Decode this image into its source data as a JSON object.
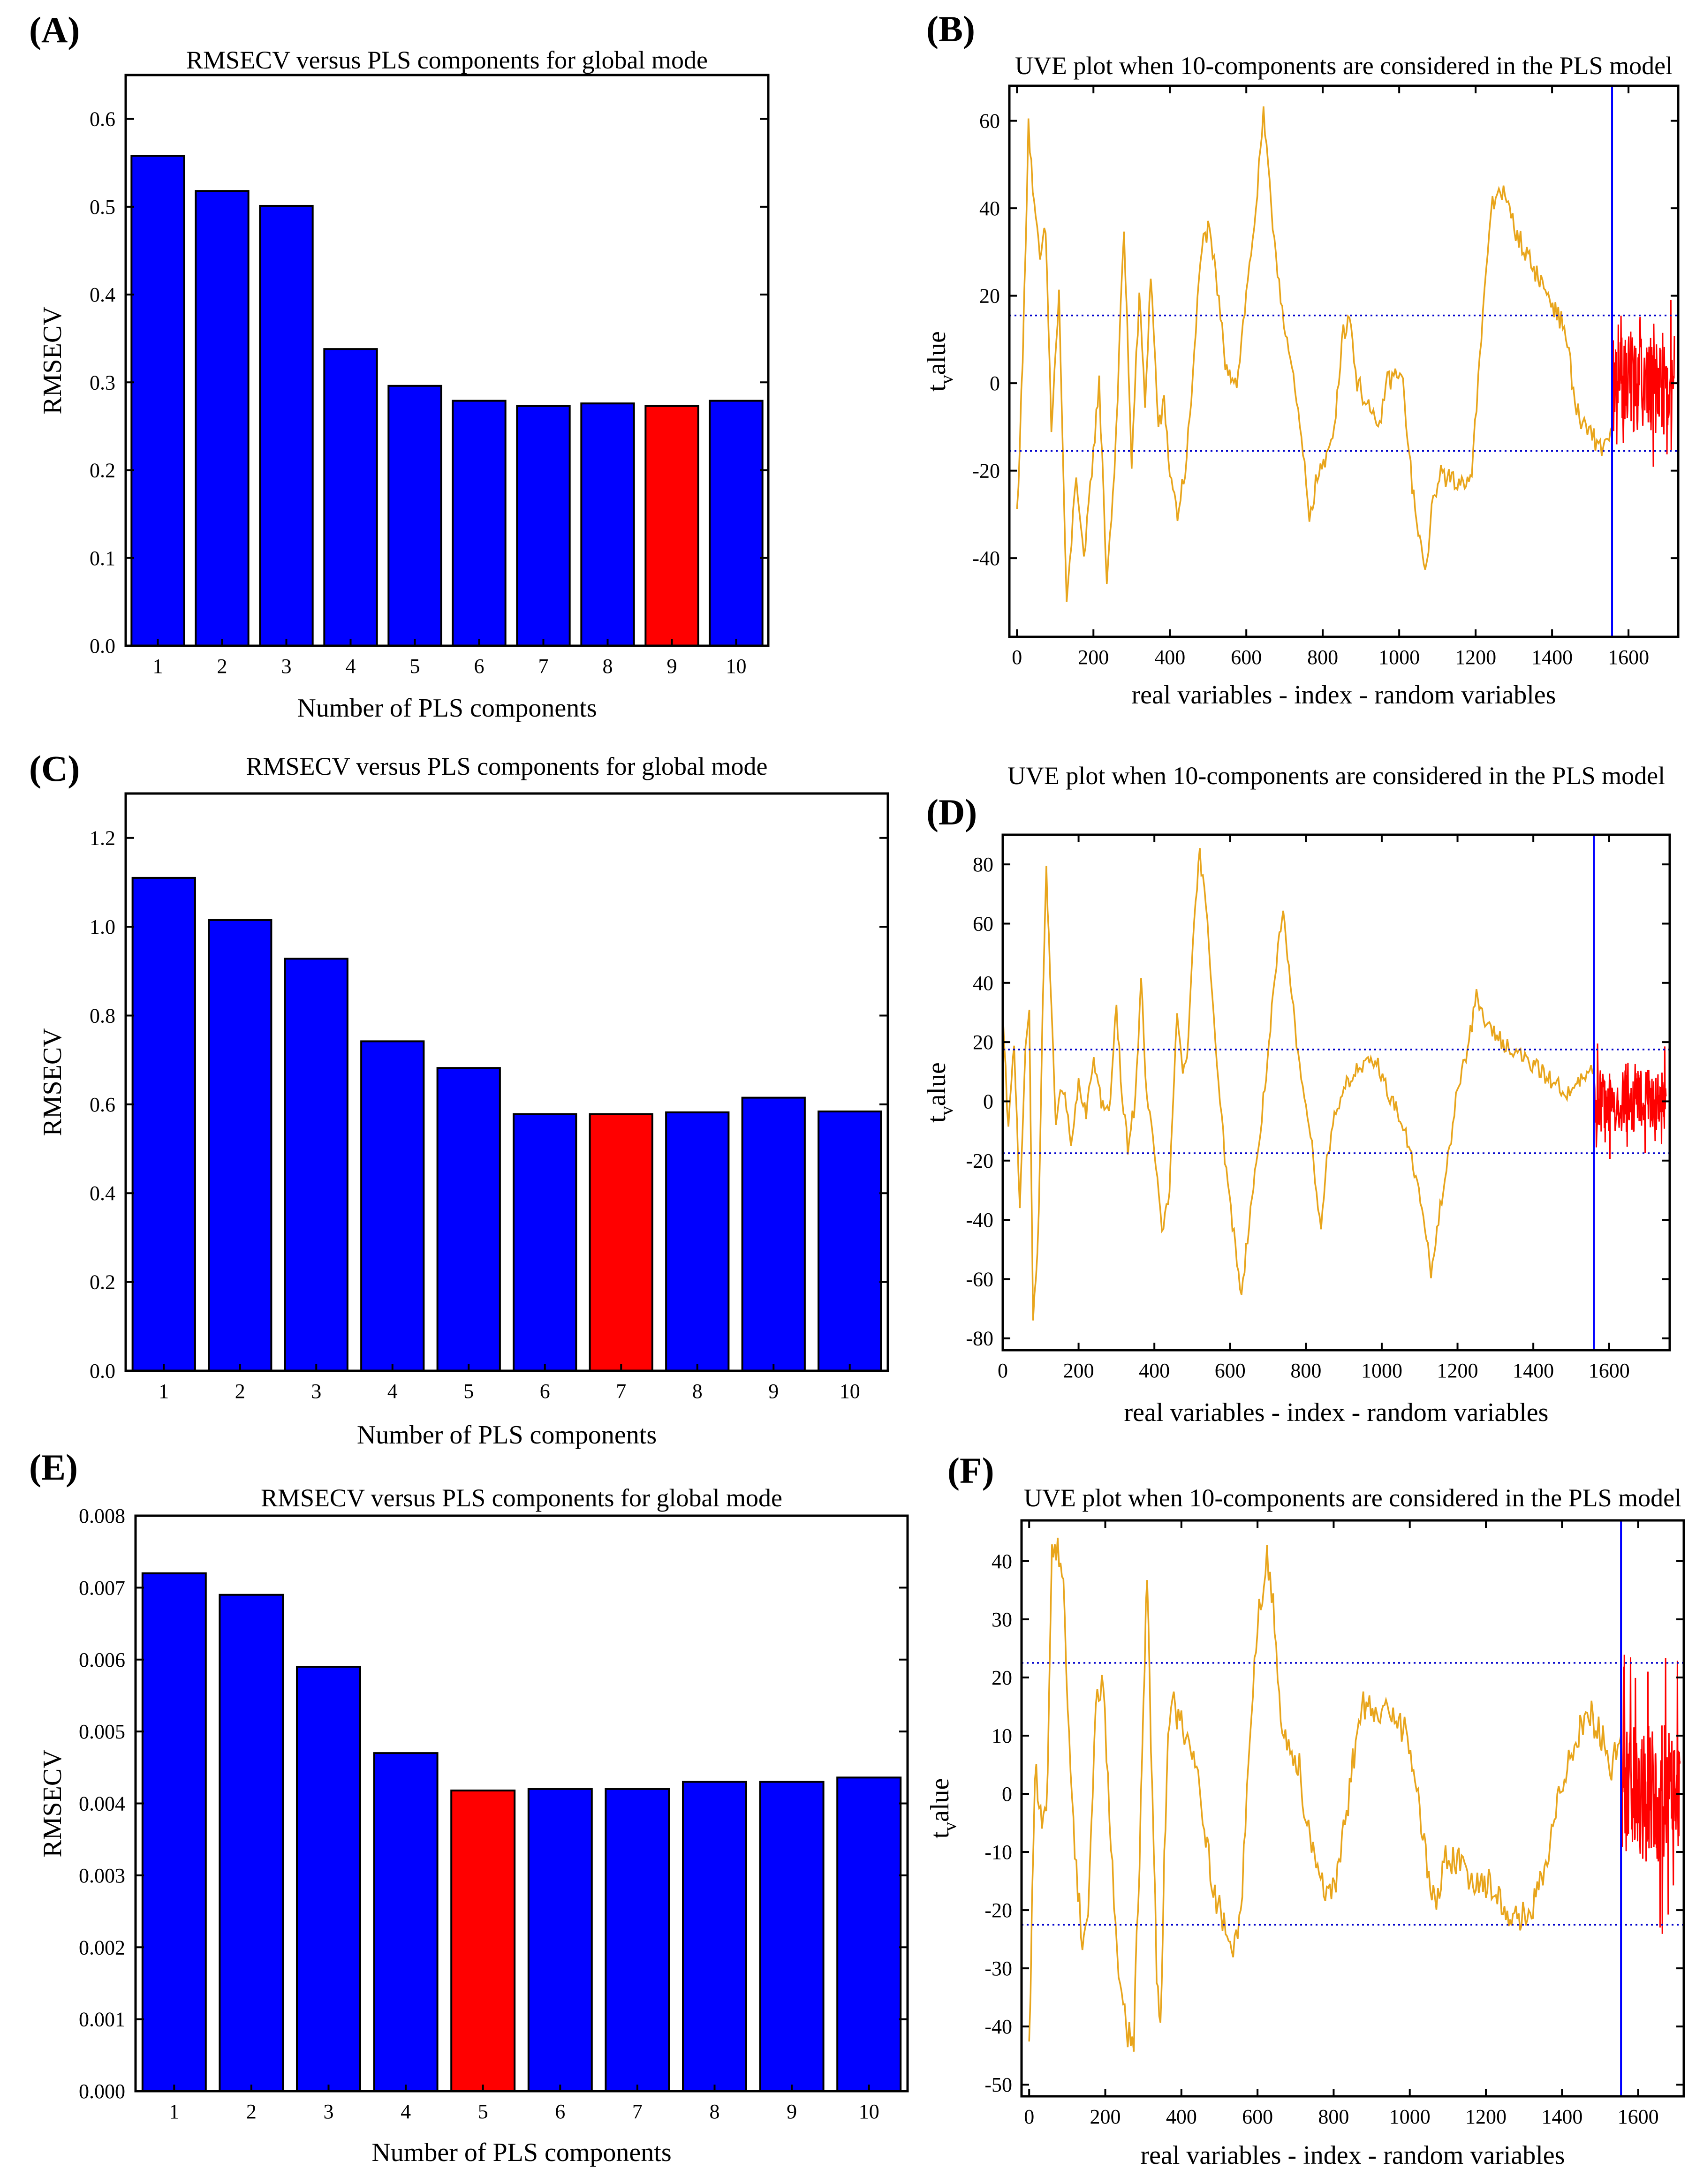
{
  "colors": {
    "bar_default": "#0000ff",
    "bar_selected": "#ff0000",
    "line_real": "#e8a51c",
    "line_random": "#ff0000",
    "threshold": "#0000cc",
    "separator": "#0000ff"
  },
  "chart_data": [
    {
      "id": "A",
      "panel_label": "(A)",
      "type": "bar",
      "title": "RMSECV versus PLS components for global mode",
      "xlabel": "Number of PLS components",
      "ylabel": "RMSECV",
      "categories": [
        "1",
        "2",
        "3",
        "4",
        "5",
        "6",
        "7",
        "8",
        "9",
        "10"
      ],
      "values": [
        0.558,
        0.518,
        0.501,
        0.338,
        0.296,
        0.279,
        0.273,
        0.276,
        0.273,
        0.279
      ],
      "highlight_index": 8,
      "ylim": [
        0,
        0.65
      ],
      "yticks": [
        0,
        0.1,
        0.2,
        0.3,
        0.4,
        0.5,
        0.6
      ],
      "ytick_labels": [
        "0.0",
        "0.1",
        "0.2",
        "0.3",
        "0.4",
        "0.5",
        "0.6"
      ]
    },
    {
      "id": "B",
      "panel_label": "(B)",
      "type": "line",
      "title": "UVE plot when 10-components are considered in the PLS model",
      "xlabel": "real variables - index - random variables",
      "ylabel_main": "t",
      "ylabel_sub": "v",
      "ylabel_rest": "alue",
      "xlim": [
        -20,
        1730
      ],
      "ylim": [
        -58,
        68
      ],
      "xticks": [
        0,
        200,
        400,
        600,
        800,
        1000,
        1200,
        1400,
        1600
      ],
      "xtick_labels": [
        "0",
        "200",
        "400",
        "600",
        "800",
        "1000",
        "1200",
        "1400",
        "1600"
      ],
      "yticks": [
        -40,
        -20,
        0,
        20,
        40,
        60
      ],
      "ytick_labels": [
        "-40",
        "-20",
        "0",
        "20",
        "40",
        "60"
      ],
      "threshold": 15.5,
      "separator_x": 1557,
      "real_series": [
        [
          0,
          -30
        ],
        [
          15,
          5
        ],
        [
          30,
          60
        ],
        [
          45,
          40
        ],
        [
          60,
          28
        ],
        [
          75,
          35
        ],
        [
          90,
          -10
        ],
        [
          110,
          20
        ],
        [
          130,
          -52
        ],
        [
          155,
          -20
        ],
        [
          175,
          -42
        ],
        [
          200,
          -15
        ],
        [
          215,
          0
        ],
        [
          235,
          -45
        ],
        [
          255,
          -20
        ],
        [
          280,
          35
        ],
        [
          300,
          -18
        ],
        [
          320,
          20
        ],
        [
          335,
          -5
        ],
        [
          350,
          25
        ],
        [
          370,
          -10
        ],
        [
          385,
          -5
        ],
        [
          400,
          -20
        ],
        [
          420,
          -30
        ],
        [
          440,
          -20
        ],
        [
          460,
          0
        ],
        [
          480,
          30
        ],
        [
          500,
          35
        ],
        [
          520,
          25
        ],
        [
          545,
          5
        ],
        [
          575,
          0
        ],
        [
          600,
          20
        ],
        [
          625,
          40
        ],
        [
          645,
          61
        ],
        [
          665,
          40
        ],
        [
          690,
          20
        ],
        [
          715,
          5
        ],
        [
          740,
          -10
        ],
        [
          765,
          -30
        ],
        [
          790,
          -20
        ],
        [
          810,
          -18
        ],
        [
          830,
          -10
        ],
        [
          850,
          10
        ],
        [
          870,
          16
        ],
        [
          890,
          0
        ],
        [
          920,
          -5
        ],
        [
          945,
          -12
        ],
        [
          965,
          0
        ],
        [
          990,
          2
        ],
        [
          1010,
          0
        ],
        [
          1030,
          -20
        ],
        [
          1050,
          -35
        ],
        [
          1068,
          -43
        ],
        [
          1085,
          -30
        ],
        [
          1105,
          -20
        ],
        [
          1130,
          -22
        ],
        [
          1160,
          -23
        ],
        [
          1190,
          -20
        ],
        [
          1215,
          10
        ],
        [
          1240,
          40
        ],
        [
          1265,
          45
        ],
        [
          1285,
          40
        ],
        [
          1305,
          35
        ],
        [
          1330,
          30
        ],
        [
          1360,
          25
        ],
        [
          1390,
          20
        ],
        [
          1420,
          15
        ],
        [
          1440,
          10
        ],
        [
          1460,
          -5
        ],
        [
          1480,
          -10
        ],
        [
          1505,
          -12
        ],
        [
          1530,
          -15
        ],
        [
          1557,
          -10
        ]
      ],
      "real_noise": 2.5,
      "random_x": [
        1557,
        1720
      ],
      "random_amplitude": 11,
      "random_spikes": 16,
      "random_points": 160
    },
    {
      "id": "C",
      "panel_label": "(C)",
      "type": "bar",
      "title": "RMSECV versus PLS components for global mode",
      "xlabel": "Number of PLS components",
      "ylabel": "RMSECV",
      "categories": [
        "1",
        "2",
        "3",
        "4",
        "5",
        "6",
        "7",
        "8",
        "9",
        "10"
      ],
      "values": [
        1.11,
        1.015,
        0.928,
        0.742,
        0.682,
        0.578,
        0.578,
        0.582,
        0.615,
        0.584
      ],
      "highlight_index": 6,
      "ylim": [
        0,
        1.3
      ],
      "yticks": [
        0,
        0.2,
        0.4,
        0.6,
        0.8,
        1.0,
        1.2
      ],
      "ytick_labels": [
        "0.0",
        "0.2",
        "0.4",
        "0.6",
        "0.8",
        "1.0",
        "1.2"
      ]
    },
    {
      "id": "D",
      "panel_label": "(D)",
      "type": "line",
      "title": "UVE plot when 10-components are considered in the PLS model",
      "xlabel": "real variables - index - random variables",
      "ylabel_main": "t",
      "ylabel_sub": "v",
      "ylabel_rest": "alue",
      "xlim": [
        0,
        1760
      ],
      "ylim": [
        -84,
        90
      ],
      "xticks": [
        0,
        200,
        400,
        600,
        800,
        1000,
        1200,
        1400,
        1600
      ],
      "xtick_labels": [
        "0",
        "200",
        "400",
        "600",
        "800",
        "1000",
        "1200",
        "1400",
        "1600"
      ],
      "yticks": [
        -80,
        -60,
        -40,
        -20,
        0,
        20,
        40,
        60,
        80
      ],
      "ytick_labels": [
        "-80",
        "-60",
        "-40",
        "-20",
        "0",
        "20",
        "40",
        "60",
        "80"
      ],
      "threshold": 17.5,
      "separator_x": 1560,
      "real_series": [
        [
          0,
          28
        ],
        [
          15,
          -10
        ],
        [
          30,
          20
        ],
        [
          45,
          -35
        ],
        [
          60,
          20
        ],
        [
          70,
          28
        ],
        [
          80,
          -74
        ],
        [
          95,
          -40
        ],
        [
          105,
          30
        ],
        [
          115,
          80
        ],
        [
          125,
          40
        ],
        [
          140,
          -5
        ],
        [
          160,
          5
        ],
        [
          180,
          -15
        ],
        [
          200,
          5
        ],
        [
          220,
          -5
        ],
        [
          240,
          15
        ],
        [
          260,
          0
        ],
        [
          280,
          -5
        ],
        [
          300,
          32
        ],
        [
          315,
          0
        ],
        [
          330,
          -15
        ],
        [
          350,
          0
        ],
        [
          365,
          43
        ],
        [
          380,
          0
        ],
        [
          400,
          -15
        ],
        [
          420,
          -45
        ],
        [
          440,
          -30
        ],
        [
          460,
          30
        ],
        [
          475,
          10
        ],
        [
          490,
          20
        ],
        [
          505,
          60
        ],
        [
          520,
          84
        ],
        [
          540,
          60
        ],
        [
          565,
          15
        ],
        [
          590,
          -25
        ],
        [
          610,
          -45
        ],
        [
          630,
          -66
        ],
        [
          650,
          -40
        ],
        [
          680,
          -10
        ],
        [
          710,
          30
        ],
        [
          730,
          55
        ],
        [
          740,
          62
        ],
        [
          755,
          45
        ],
        [
          775,
          20
        ],
        [
          800,
          0
        ],
        [
          820,
          -20
        ],
        [
          840,
          -43
        ],
        [
          855,
          -20
        ],
        [
          875,
          -5
        ],
        [
          900,
          5
        ],
        [
          930,
          10
        ],
        [
          960,
          12
        ],
        [
          990,
          13
        ],
        [
          1010,
          5
        ],
        [
          1030,
          0
        ],
        [
          1060,
          -10
        ],
        [
          1090,
          -25
        ],
        [
          1110,
          -40
        ],
        [
          1130,
          -58
        ],
        [
          1150,
          -40
        ],
        [
          1175,
          -20
        ],
        [
          1200,
          5
        ],
        [
          1230,
          20
        ],
        [
          1250,
          35
        ],
        [
          1280,
          25
        ],
        [
          1320,
          20
        ],
        [
          1370,
          15
        ],
        [
          1420,
          10
        ],
        [
          1470,
          5
        ],
        [
          1500,
          2
        ],
        [
          1530,
          8
        ],
        [
          1560,
          10
        ]
      ],
      "real_noise": 3,
      "random_x": [
        1560,
        1750
      ],
      "random_amplitude": 11,
      "random_spikes": 17,
      "random_points": 180
    },
    {
      "id": "E",
      "panel_label": "(E)",
      "type": "bar",
      "title": "RMSECV versus PLS components for global mode",
      "xlabel": "Number of PLS components",
      "ylabel": "RMSECV",
      "categories": [
        "1",
        "2",
        "3",
        "4",
        "5",
        "6",
        "7",
        "8",
        "9",
        "10"
      ],
      "values": [
        0.0072,
        0.0069,
        0.0059,
        0.0047,
        0.00418,
        0.0042,
        0.0042,
        0.0043,
        0.0043,
        0.00436
      ],
      "highlight_index": 4,
      "ylim": [
        0,
        0.008
      ],
      "yticks": [
        0,
        0.001,
        0.002,
        0.003,
        0.004,
        0.005,
        0.006,
        0.007,
        0.008
      ],
      "ytick_labels": [
        "0.000",
        "0.001",
        "0.002",
        "0.003",
        "0.004",
        "0.005",
        "0.006",
        "0.007",
        "0.008"
      ]
    },
    {
      "id": "F",
      "panel_label": "(F)",
      "type": "line",
      "title": "UVE plot when 10-components are considered in the PLS model",
      "xlabel": "real variables - index - random variables",
      "ylabel_main": "t",
      "ylabel_sub": "v",
      "ylabel_rest": "alue",
      "xlim": [
        -20,
        1720
      ],
      "ylim": [
        -52,
        47
      ],
      "xticks": [
        0,
        200,
        400,
        600,
        800,
        1000,
        1200,
        1400,
        1600
      ],
      "xtick_labels": [
        "0",
        "200",
        "400",
        "600",
        "800",
        "1000",
        "1200",
        "1400",
        "1600"
      ],
      "yticks": [
        -50,
        -40,
        -30,
        -20,
        -10,
        0,
        10,
        20,
        30,
        40
      ],
      "ytick_labels": [
        "-50",
        "-40",
        "-30",
        "-20",
        "-10",
        "0",
        "10",
        "20",
        "30",
        "40"
      ],
      "threshold": 22.5,
      "separator_x": 1555,
      "real_series": [
        [
          0,
          -45
        ],
        [
          15,
          5
        ],
        [
          30,
          -5
        ],
        [
          45,
          -5
        ],
        [
          60,
          40
        ],
        [
          75,
          44
        ],
        [
          90,
          35
        ],
        [
          105,
          10
        ],
        [
          120,
          -10
        ],
        [
          140,
          -25
        ],
        [
          155,
          -20
        ],
        [
          175,
          15
        ],
        [
          195,
          20
        ],
        [
          215,
          -10
        ],
        [
          235,
          -30
        ],
        [
          255,
          -40
        ],
        [
          275,
          -43
        ],
        [
          290,
          -10
        ],
        [
          300,
          15
        ],
        [
          310,
          38
        ],
        [
          320,
          10
        ],
        [
          335,
          -30
        ],
        [
          345,
          -40
        ],
        [
          355,
          -10
        ],
        [
          365,
          10
        ],
        [
          380,
          15
        ],
        [
          400,
          12
        ],
        [
          420,
          10
        ],
        [
          440,
          5
        ],
        [
          460,
          -5
        ],
        [
          480,
          -15
        ],
        [
          500,
          -20
        ],
        [
          520,
          -25
        ],
        [
          540,
          -27
        ],
        [
          560,
          -15
        ],
        [
          580,
          10
        ],
        [
          600,
          30
        ],
        [
          625,
          40
        ],
        [
          645,
          30
        ],
        [
          665,
          10
        ],
        [
          690,
          8
        ],
        [
          710,
          5
        ],
        [
          730,
          -5
        ],
        [
          750,
          -10
        ],
        [
          770,
          -15
        ],
        [
          790,
          -18
        ],
        [
          810,
          -15
        ],
        [
          830,
          -5
        ],
        [
          850,
          5
        ],
        [
          870,
          15
        ],
        [
          890,
          15
        ],
        [
          910,
          12
        ],
        [
          930,
          14
        ],
        [
          960,
          15
        ],
        [
          990,
          10
        ],
        [
          1010,
          5
        ],
        [
          1030,
          -5
        ],
        [
          1050,
          -15
        ],
        [
          1070,
          -20
        ],
        [
          1090,
          -10
        ],
        [
          1110,
          -12
        ],
        [
          1140,
          -12
        ],
        [
          1170,
          -15
        ],
        [
          1200,
          -15
        ],
        [
          1230,
          -18
        ],
        [
          1260,
          -20
        ],
        [
          1290,
          -22
        ],
        [
          1320,
          -20
        ],
        [
          1350,
          -15
        ],
        [
          1380,
          -5
        ],
        [
          1410,
          5
        ],
        [
          1440,
          10
        ],
        [
          1470,
          15
        ],
        [
          1500,
          10
        ],
        [
          1530,
          5
        ],
        [
          1555,
          10
        ]
      ],
      "real_noise": 3,
      "random_x": [
        1555,
        1710
      ],
      "random_amplitude": 12,
      "random_spikes": 22,
      "random_points": 160
    }
  ]
}
